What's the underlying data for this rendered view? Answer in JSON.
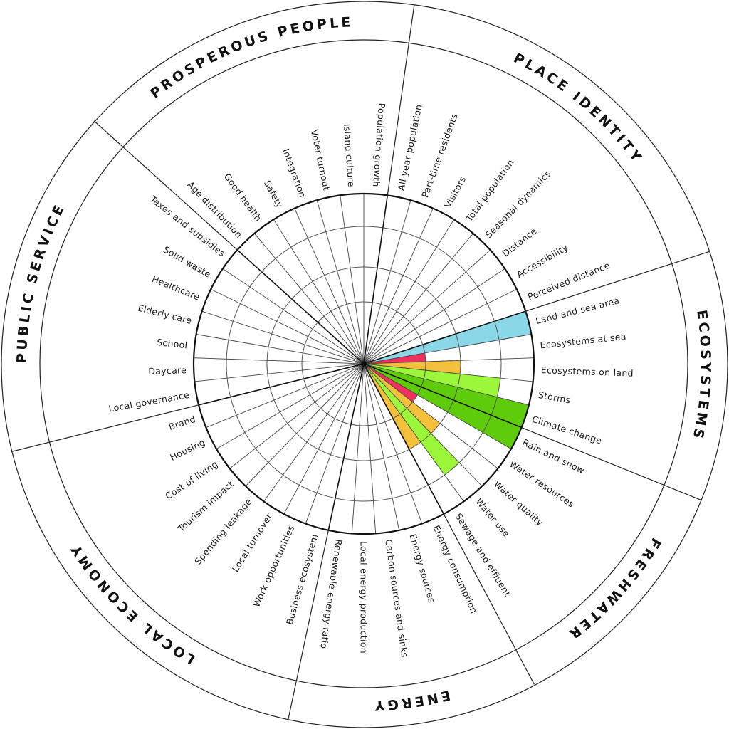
{
  "chart_data": {
    "type": "radial-bar",
    "title": "",
    "scale": {
      "min": 0,
      "max": 4,
      "rings": [
        1,
        2,
        3,
        4
      ]
    },
    "start_angle_deg": 312,
    "sector_deg": 8,
    "colors": {
      "blue": "#8ad7e8",
      "red": "#f0305e",
      "orange": "#f2c03a",
      "light_green": "#9cf63a",
      "dark_green": "#5fcc0b"
    },
    "sections": [
      {
        "name": "PROSPEROUS PEOPLE",
        "indicators": [
          {
            "label": "Age distribution",
            "value": 0,
            "color": null
          },
          {
            "label": "Good health",
            "value": 0,
            "color": null
          },
          {
            "label": "Safety",
            "value": 0,
            "color": null
          },
          {
            "label": "Integration",
            "value": 0,
            "color": null
          },
          {
            "label": "Voter turnout",
            "value": 0,
            "color": null
          },
          {
            "label": "Island culture",
            "value": 0,
            "color": null
          },
          {
            "label": "Population growth",
            "value": 0,
            "color": null
          }
        ]
      },
      {
        "name": "PLACE IDENTITY",
        "indicators": [
          {
            "label": "All year population",
            "value": 0,
            "color": null
          },
          {
            "label": "Part-time residents",
            "value": 0,
            "color": null
          },
          {
            "label": "Visitors",
            "value": 0,
            "color": null
          },
          {
            "label": "Total population",
            "value": 0,
            "color": null
          },
          {
            "label": "Seasonal dynamics",
            "value": 0,
            "color": null
          },
          {
            "label": "Distance",
            "value": 0,
            "color": null
          },
          {
            "label": "Accessibility",
            "value": 0,
            "color": null
          },
          {
            "label": "Perceived distance",
            "value": 0,
            "color": null
          }
        ]
      },
      {
        "name": "ECOSYSTEMS",
        "indicators": [
          {
            "label": "Land and sea area",
            "value": 4,
            "color": "blue"
          },
          {
            "label": "Ecosystems at sea",
            "value": 1,
            "color": "red"
          },
          {
            "label": "Ecosystems on land",
            "value": 2,
            "color": "orange"
          },
          {
            "label": "Storms",
            "value": 3,
            "color": "light_green"
          },
          {
            "label": "Climate change",
            "value": 4,
            "color": "dark_green"
          }
        ]
      },
      {
        "name": "FRESHWATER",
        "indicators": [
          {
            "label": "Rain and snow",
            "value": 4,
            "color": "dark_green"
          },
          {
            "label": "Water resources",
            "value": 1,
            "color": "red"
          },
          {
            "label": "Water quality",
            "value": 2,
            "color": "orange"
          },
          {
            "label": "Water use",
            "value": 3,
            "color": "light_green"
          },
          {
            "label": "Sewage and effluent",
            "value": 2,
            "color": "orange"
          }
        ]
      },
      {
        "name": "ENERGY",
        "indicators": [
          {
            "label": "Energy consumption",
            "value": 0,
            "color": null
          },
          {
            "label": "Energy sources",
            "value": 0,
            "color": null
          },
          {
            "label": "Carbon sources and sinks",
            "value": 0,
            "color": null
          },
          {
            "label": "Local energy production",
            "value": 0,
            "color": null
          },
          {
            "label": "Renewable energy ratio",
            "value": 0,
            "color": null
          }
        ]
      },
      {
        "name": "LOCAL ECONOMY",
        "indicators": [
          {
            "label": "Business ecosystem",
            "value": 0,
            "color": null
          },
          {
            "label": "Work opportunities",
            "value": 0,
            "color": null
          },
          {
            "label": "Local turnover",
            "value": 0,
            "color": null
          },
          {
            "label": "Spending leakage",
            "value": 0,
            "color": null
          },
          {
            "label": "Tourism impact",
            "value": 0,
            "color": null
          },
          {
            "label": "Cost of living",
            "value": 0,
            "color": null
          },
          {
            "label": "Housing",
            "value": 0,
            "color": null
          },
          {
            "label": "Brand",
            "value": 0,
            "color": null
          }
        ]
      },
      {
        "name": "PUBLIC SERVICE",
        "indicators": [
          {
            "label": "Local governance",
            "value": 0,
            "color": null
          },
          {
            "label": "Daycare",
            "value": 0,
            "color": null
          },
          {
            "label": "School",
            "value": 0,
            "color": null
          },
          {
            "label": "Elderly care",
            "value": 0,
            "color": null
          },
          {
            "label": "Healthcare",
            "value": 0,
            "color": null
          },
          {
            "label": "Solid waste",
            "value": 0,
            "color": null
          },
          {
            "label": "Taxes and subsidies",
            "value": 0,
            "color": null
          }
        ]
      }
    ],
    "layout": {
      "grid": true,
      "legend": false
    }
  }
}
